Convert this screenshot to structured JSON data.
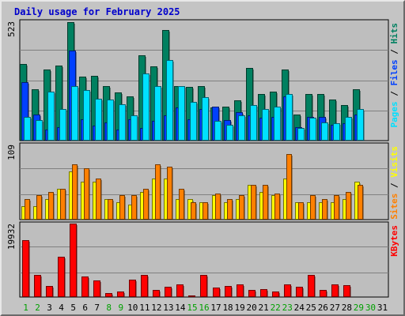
{
  "title": "Daily usage for February 2025",
  "colors": {
    "background": "#c0c0c0",
    "panel": "#bebebe",
    "grid": "#808080",
    "hits": "#008060",
    "files": "#0040ff",
    "pages": "#00e0ff",
    "visits": "#ffff00",
    "sites": "#ff8000",
    "kbytes": "#ff0000",
    "weekday_label": "#000000",
    "weekend_label": "#00a000"
  },
  "chart_data": [
    {
      "type": "bar",
      "max_label": "523",
      "legend": [
        "Pages",
        "Files",
        "Hits"
      ],
      "ylim": [
        0,
        523
      ],
      "series": [
        {
          "name": "Hits",
          "color": "#008060",
          "values": [
            335,
            225,
            310,
            330,
            520,
            280,
            285,
            240,
            210,
            195,
            375,
            325,
            485,
            240,
            235,
            240,
            145,
            150,
            175,
            320,
            205,
            215,
            310,
            115,
            205,
            205,
            180,
            155,
            225,
            0,
            0
          ]
        },
        {
          "name": "Files",
          "color": "#0040ff",
          "values": [
            255,
            115,
            50,
            60,
            395,
            95,
            65,
            80,
            50,
            95,
            55,
            85,
            110,
            145,
            95,
            140,
            150,
            90,
            125,
            110,
            100,
            105,
            195,
            60,
            105,
            105,
            70,
            75,
            115,
            0,
            0
          ]
        },
        {
          "name": "Pages",
          "color": "#00e0ff",
          "values": [
            105,
            90,
            215,
            140,
            240,
            220,
            185,
            180,
            160,
            110,
            295,
            240,
            355,
            240,
            170,
            190,
            85,
            70,
            110,
            155,
            140,
            150,
            205,
            55,
            100,
            80,
            75,
            105,
            140,
            0,
            0
          ]
        }
      ]
    },
    {
      "type": "bar",
      "max_label": "109",
      "legend": [
        "Sites",
        "Visits"
      ],
      "ylim": [
        0,
        109
      ],
      "series": [
        {
          "name": "Visits",
          "color": "#ffff00",
          "values": [
            20,
            20,
            30,
            45,
            70,
            55,
            55,
            30,
            25,
            22,
            40,
            60,
            60,
            30,
            30,
            25,
            35,
            25,
            30,
            50,
            40,
            35,
            60,
            25,
            25,
            25,
            25,
            30,
            55,
            0,
            0
          ]
        },
        {
          "name": "Sites",
          "color": "#ff8000",
          "values": [
            30,
            35,
            40,
            45,
            80,
            75,
            60,
            30,
            35,
            35,
            45,
            80,
            77,
            45,
            25,
            25,
            38,
            30,
            35,
            50,
            50,
            38,
            95,
            25,
            35,
            30,
            35,
            40,
            50,
            0,
            0
          ]
        }
      ]
    },
    {
      "type": "bar",
      "max_label": "19932",
      "legend": [
        "KBytes"
      ],
      "ylim": [
        0,
        19932
      ],
      "series": [
        {
          "name": "KBytes",
          "color": "#ff0000",
          "values": [
            15500,
            6000,
            3000,
            11000,
            19932,
            5500,
            4500,
            1000,
            1500,
            4800,
            6000,
            2000,
            2800,
            3500,
            500,
            6000,
            2500,
            3000,
            3500,
            2000,
            2200,
            1500,
            3500,
            2800,
            6000,
            2000,
            3500,
            3300,
            0,
            0,
            0
          ]
        }
      ]
    }
  ],
  "days": [
    "1",
    "2",
    "3",
    "4",
    "5",
    "6",
    "7",
    "8",
    "9",
    "10",
    "11",
    "12",
    "13",
    "14",
    "15",
    "16",
    "17",
    "18",
    "19",
    "20",
    "21",
    "22",
    "23",
    "24",
    "25",
    "26",
    "27",
    "28",
    "29",
    "30",
    "31"
  ],
  "weekend_days": [
    1,
    2,
    8,
    9,
    15,
    16,
    22,
    23,
    29,
    30
  ]
}
